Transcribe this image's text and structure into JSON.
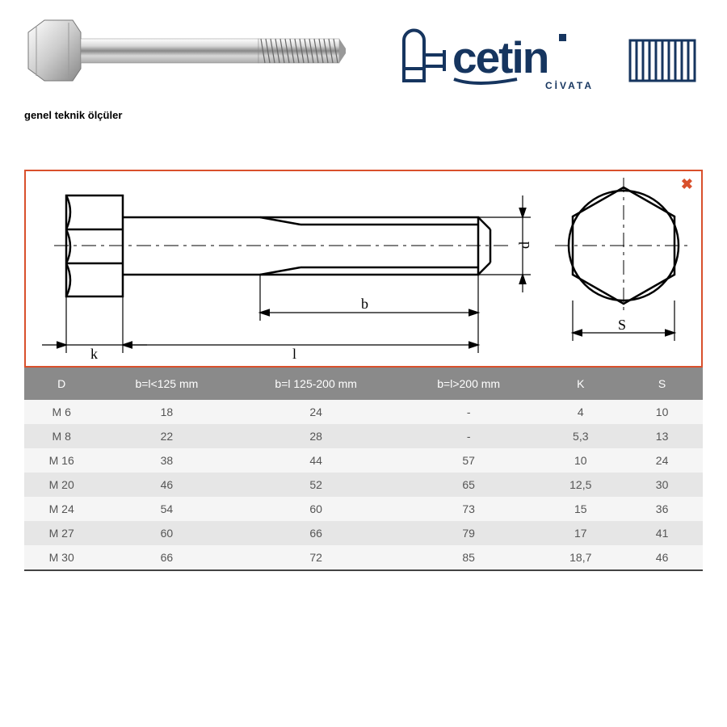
{
  "header": {
    "caption": "genel teknik ölçüler",
    "logo_text_main": "cetin",
    "logo_text_sub": "CİVATA"
  },
  "diagram": {
    "stroke": "#000000",
    "border_color": "#d9502c",
    "labels": {
      "k": "k",
      "l": "l",
      "b": "b",
      "d": "d",
      "s": "S"
    },
    "close_icon": "✖"
  },
  "table": {
    "header_bg": "#8a8a8a",
    "header_fg": "#ffffff",
    "row_odd_bg": "#f5f5f5",
    "row_even_bg": "#e6e6e6",
    "columns": [
      "D",
      "b=l<125 mm",
      "b=l 125-200 mm",
      "b=l>200 mm",
      "K",
      "S"
    ],
    "rows": [
      [
        "M 6",
        "18",
        "24",
        "-",
        "4",
        "10"
      ],
      [
        "M 8",
        "22",
        "28",
        "-",
        "5,3",
        "13"
      ],
      [
        "M 16",
        "38",
        "44",
        "57",
        "10",
        "24"
      ],
      [
        "M 20",
        "46",
        "52",
        "65",
        "12,5",
        "30"
      ],
      [
        "M 24",
        "54",
        "60",
        "73",
        "15",
        "36"
      ],
      [
        "M 27",
        "60",
        "66",
        "79",
        "17",
        "41"
      ],
      [
        "M 30",
        "66",
        "72",
        "85",
        "18,7",
        "46"
      ]
    ]
  }
}
